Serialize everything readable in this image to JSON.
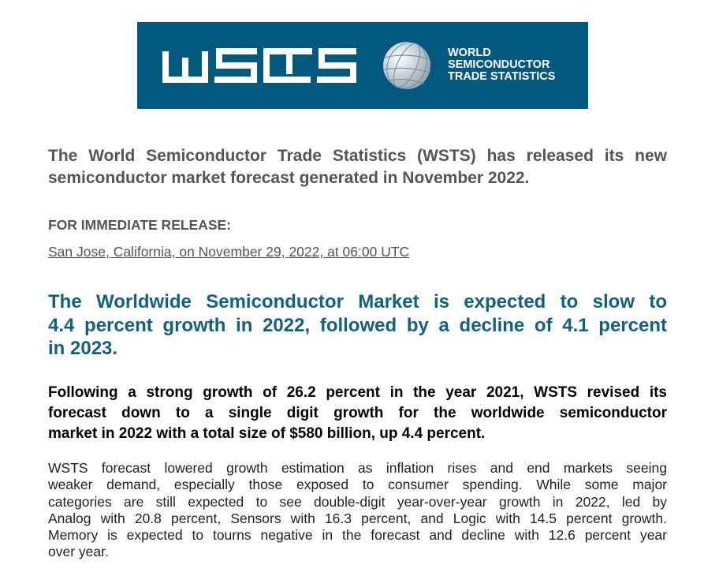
{
  "logo": {
    "wordmark": "WSTS",
    "tagline": [
      "WORLD",
      "SEMICONDUCTOR",
      "TRADE STATISTICS"
    ],
    "color": "#03597d"
  },
  "intro": [
    "The World Semiconductor Trade Statistics (WSTS) has released its new",
    "semiconductor market forecast generated in November 2022."
  ],
  "release_label": "FOR IMMEDIATE RELEASE:",
  "location": "San Jose, California, on November 29, 2022, at 06:00 UTC",
  "headline": [
    "The Worldwide Semiconductor Market is expected to slow to",
    "4.4 percent growth in 2022, followed by a decline of 4.1 percent",
    "in 2023."
  ],
  "subhead": [
    "Following a strong growth of 26.2 percent in the year 2021, WSTS revised its",
    "forecast down to a single digit growth for the worldwide semiconductor",
    "market in 2022 with a total size of $580 billion, up 4.4 percent."
  ],
  "body": [
    "WSTS forecast lowered growth estimation as inflation rises and end markets seeing",
    "weaker demand, especially those exposed to consumer spending. While some major",
    "categories are still expected to see double-digit year-over-year growth in 2022, led by",
    "Analog with 20.8 percent, Sensors with 16.3 percent, and Logic with 14.5 percent growth.",
    "Memory is expected to tourns negative in the forecast and decline with 12.6 percent year",
    "over year."
  ]
}
